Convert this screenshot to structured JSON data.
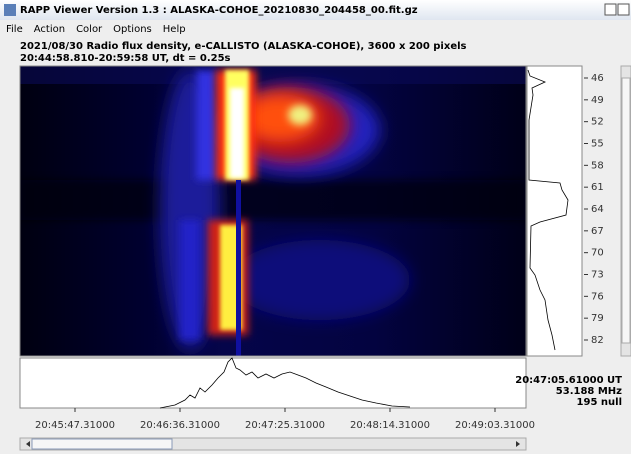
{
  "window": {
    "title": "RAPP Viewer Version 1.3 : ALASKA-COHOE_20210830_204458_00.fit.gz"
  },
  "menu": [
    "File",
    "Action",
    "Color",
    "Options",
    "Help"
  ],
  "info": {
    "line1": "2021/08/30  Radio flux density, e-CALLISTO (ALASKA-COHOE),  3600 x 200 pixels",
    "line2": "20:44:58.810-20:59:58 UT,  dt = 0.25s"
  },
  "frequency_labels": [
    "46",
    "49",
    "52",
    "55",
    "58",
    "61",
    "64",
    "67",
    "70",
    "73",
    "76",
    "79",
    "82"
  ],
  "time_labels": [
    "20:45:47.31000",
    "20:46:36.31000",
    "20:47:25.31000",
    "20:48:14.31000",
    "20:49:03.31000"
  ],
  "cursor_readout": [
    "20:47:05.61000 UT",
    "53.188 MHz",
    "195 null"
  ]
}
